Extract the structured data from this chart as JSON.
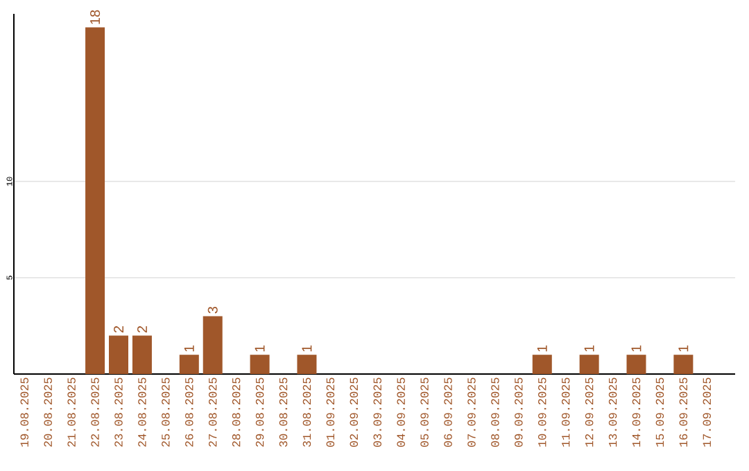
{
  "chart_data": {
    "type": "bar",
    "categories": [
      "19.08.2025",
      "20.08.2025",
      "21.08.2025",
      "22.08.2025",
      "23.08.2025",
      "24.08.2025",
      "25.08.2025",
      "26.08.2025",
      "27.08.2025",
      "28.08.2025",
      "29.08.2025",
      "30.08.2025",
      "31.08.2025",
      "01.09.2025",
      "02.09.2025",
      "03.09.2025",
      "04.09.2025",
      "05.09.2025",
      "06.09.2025",
      "07.09.2025",
      "08.09.2025",
      "09.09.2025",
      "10.09.2025",
      "11.09.2025",
      "12.09.2025",
      "13.09.2025",
      "14.09.2025",
      "15.09.2025",
      "16.09.2025",
      "17.09.2025"
    ],
    "values": [
      0,
      0,
      0,
      18,
      2,
      2,
      0,
      1,
      3,
      0,
      1,
      0,
      1,
      0,
      0,
      0,
      0,
      0,
      0,
      0,
      0,
      0,
      1,
      0,
      1,
      0,
      1,
      0,
      1,
      0
    ],
    "value_labels": [
      null,
      null,
      null,
      "18",
      "2",
      "2",
      null,
      "1",
      "3",
      null,
      "1",
      null,
      "1",
      null,
      null,
      null,
      null,
      null,
      null,
      null,
      null,
      null,
      "1",
      null,
      "1",
      null,
      "1",
      null,
      "1",
      null
    ],
    "color": "#a0572a",
    "ylim": [
      0,
      18.7
    ],
    "yticks": [
      5,
      10
    ],
    "grid": "y"
  }
}
